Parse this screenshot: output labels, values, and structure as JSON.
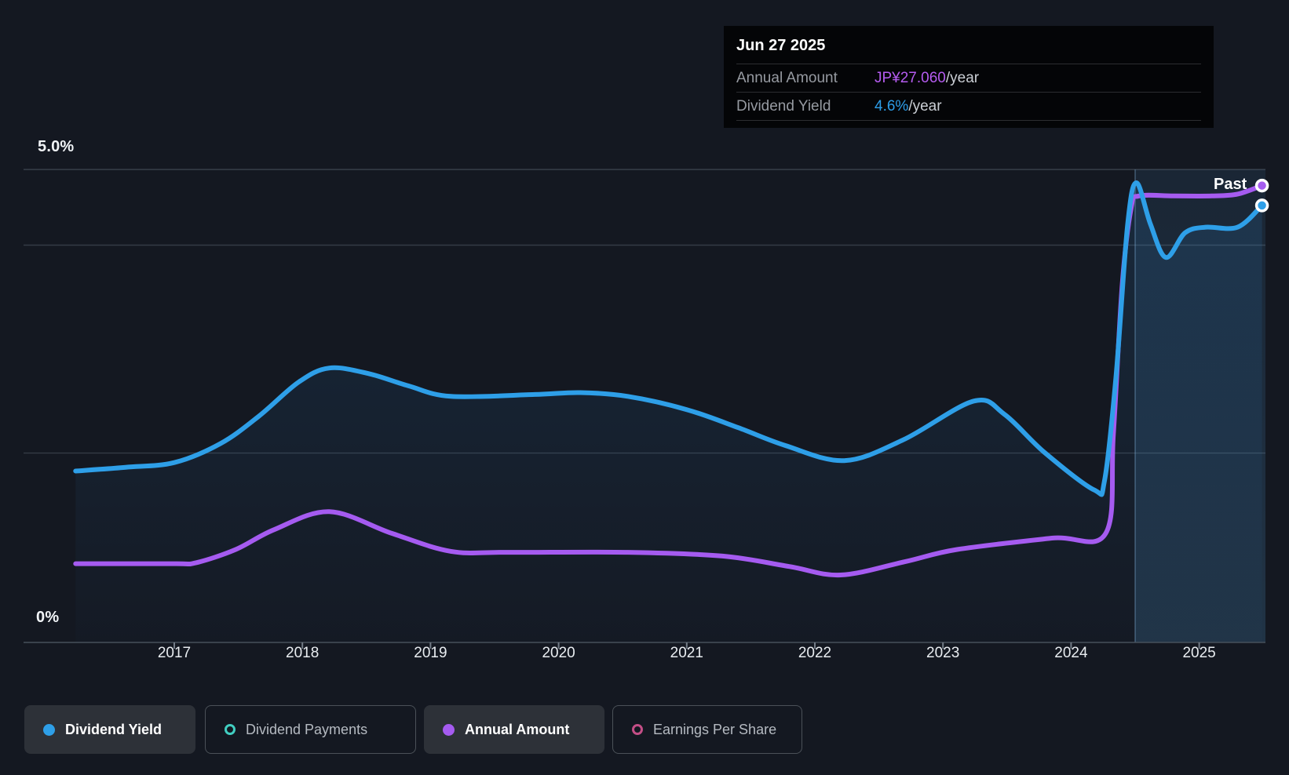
{
  "page": {
    "background": "#141821"
  },
  "tooltip": {
    "date": "Jun 27 2025",
    "rows": [
      {
        "label": "Annual Amount",
        "value": "JP¥27.060",
        "unit": "/year",
        "value_color": "#b55cf0"
      },
      {
        "label": "Dividend Yield",
        "value": "4.6%",
        "unit": "/year",
        "value_color": "#2d9de8"
      }
    ]
  },
  "y_axis": {
    "max_label": "5.0%",
    "min_label": "0%"
  },
  "x_axis": {
    "ticks": [
      "2017",
      "2018",
      "2019",
      "2020",
      "2021",
      "2022",
      "2023",
      "2024",
      "2025"
    ]
  },
  "past_region": {
    "label": "Past"
  },
  "legend": {
    "items": [
      {
        "label": "Dividend Yield",
        "color": "#2E9FE8",
        "swatch": "filled",
        "active": true
      },
      {
        "label": "Dividend Payments",
        "color": "#41CEC1",
        "swatch": "outline",
        "active": false
      },
      {
        "label": "Annual Amount",
        "color": "#A55BF0",
        "swatch": "filled",
        "active": true
      },
      {
        "label": "Earnings Per Share",
        "color": "#C34E86",
        "swatch": "outline",
        "active": false
      }
    ]
  },
  "chart_data": {
    "type": "area",
    "title": "Dividend history",
    "x_range": [
      2015.82,
      2025.52
    ],
    "ylim_percent": [
      0,
      5.0
    ],
    "y_gridlines_percent": [
      5.0,
      4.2,
      2.0
    ],
    "grid_color": "#343b45",
    "top_grid_color": "#3b424d",
    "axis_color": "#47505b",
    "past_divider_x": 2024.5,
    "legend_position": "bottom",
    "series": [
      {
        "name": "Dividend Yield",
        "axis": "left",
        "unit": "%",
        "color": "#2E9FE8",
        "latest_label": "4.6%/year",
        "points": [
          [
            2016.23,
            1.81
          ],
          [
            2016.62,
            1.85
          ],
          [
            2017.0,
            1.9
          ],
          [
            2017.36,
            2.1
          ],
          [
            2017.66,
            2.39
          ],
          [
            2017.97,
            2.75
          ],
          [
            2018.21,
            2.9
          ],
          [
            2018.52,
            2.84
          ],
          [
            2018.83,
            2.71
          ],
          [
            2019.16,
            2.6
          ],
          [
            2019.81,
            2.62
          ],
          [
            2020.17,
            2.64
          ],
          [
            2020.54,
            2.6
          ],
          [
            2021.0,
            2.46
          ],
          [
            2021.4,
            2.27
          ],
          [
            2021.77,
            2.08
          ],
          [
            2022.23,
            1.92
          ],
          [
            2022.69,
            2.14
          ],
          [
            2023.24,
            2.55
          ],
          [
            2023.48,
            2.41
          ],
          [
            2023.79,
            2.01
          ],
          [
            2024.18,
            1.61
          ],
          [
            2024.26,
            1.7
          ],
          [
            2024.35,
            2.8
          ],
          [
            2024.44,
            4.4
          ],
          [
            2024.51,
            4.86
          ],
          [
            2024.62,
            4.42
          ],
          [
            2024.74,
            4.07
          ],
          [
            2024.89,
            4.33
          ],
          [
            2025.05,
            4.39
          ],
          [
            2025.3,
            4.39
          ],
          [
            2025.49,
            4.62
          ]
        ],
        "area_fill": true,
        "end_marker": true
      },
      {
        "name": "Annual Amount",
        "axis": "right",
        "unit": "JP¥/year (own scale, values below are left-axis equivalents)",
        "color": "#A55BF0",
        "latest_label": "JP¥27.060/year",
        "points": [
          [
            2016.23,
            0.83
          ],
          [
            2017.0,
            0.83
          ],
          [
            2017.17,
            0.84
          ],
          [
            2017.48,
            0.98
          ],
          [
            2017.78,
            1.19
          ],
          [
            2018.21,
            1.38
          ],
          [
            2018.7,
            1.15
          ],
          [
            2019.16,
            0.96
          ],
          [
            2019.6,
            0.95
          ],
          [
            2020.54,
            0.95
          ],
          [
            2021.28,
            0.91
          ],
          [
            2021.8,
            0.8
          ],
          [
            2022.2,
            0.71
          ],
          [
            2022.7,
            0.85
          ],
          [
            2023.11,
            0.98
          ],
          [
            2023.85,
            1.1
          ],
          [
            2024.27,
            1.15
          ],
          [
            2024.33,
            2.2
          ],
          [
            2024.4,
            3.8
          ],
          [
            2024.47,
            4.6
          ],
          [
            2024.53,
            4.72
          ],
          [
            2024.8,
            4.72
          ],
          [
            2025.1,
            4.72
          ],
          [
            2025.3,
            4.74
          ],
          [
            2025.49,
            4.83
          ]
        ],
        "area_fill": false,
        "end_marker": true
      }
    ]
  }
}
